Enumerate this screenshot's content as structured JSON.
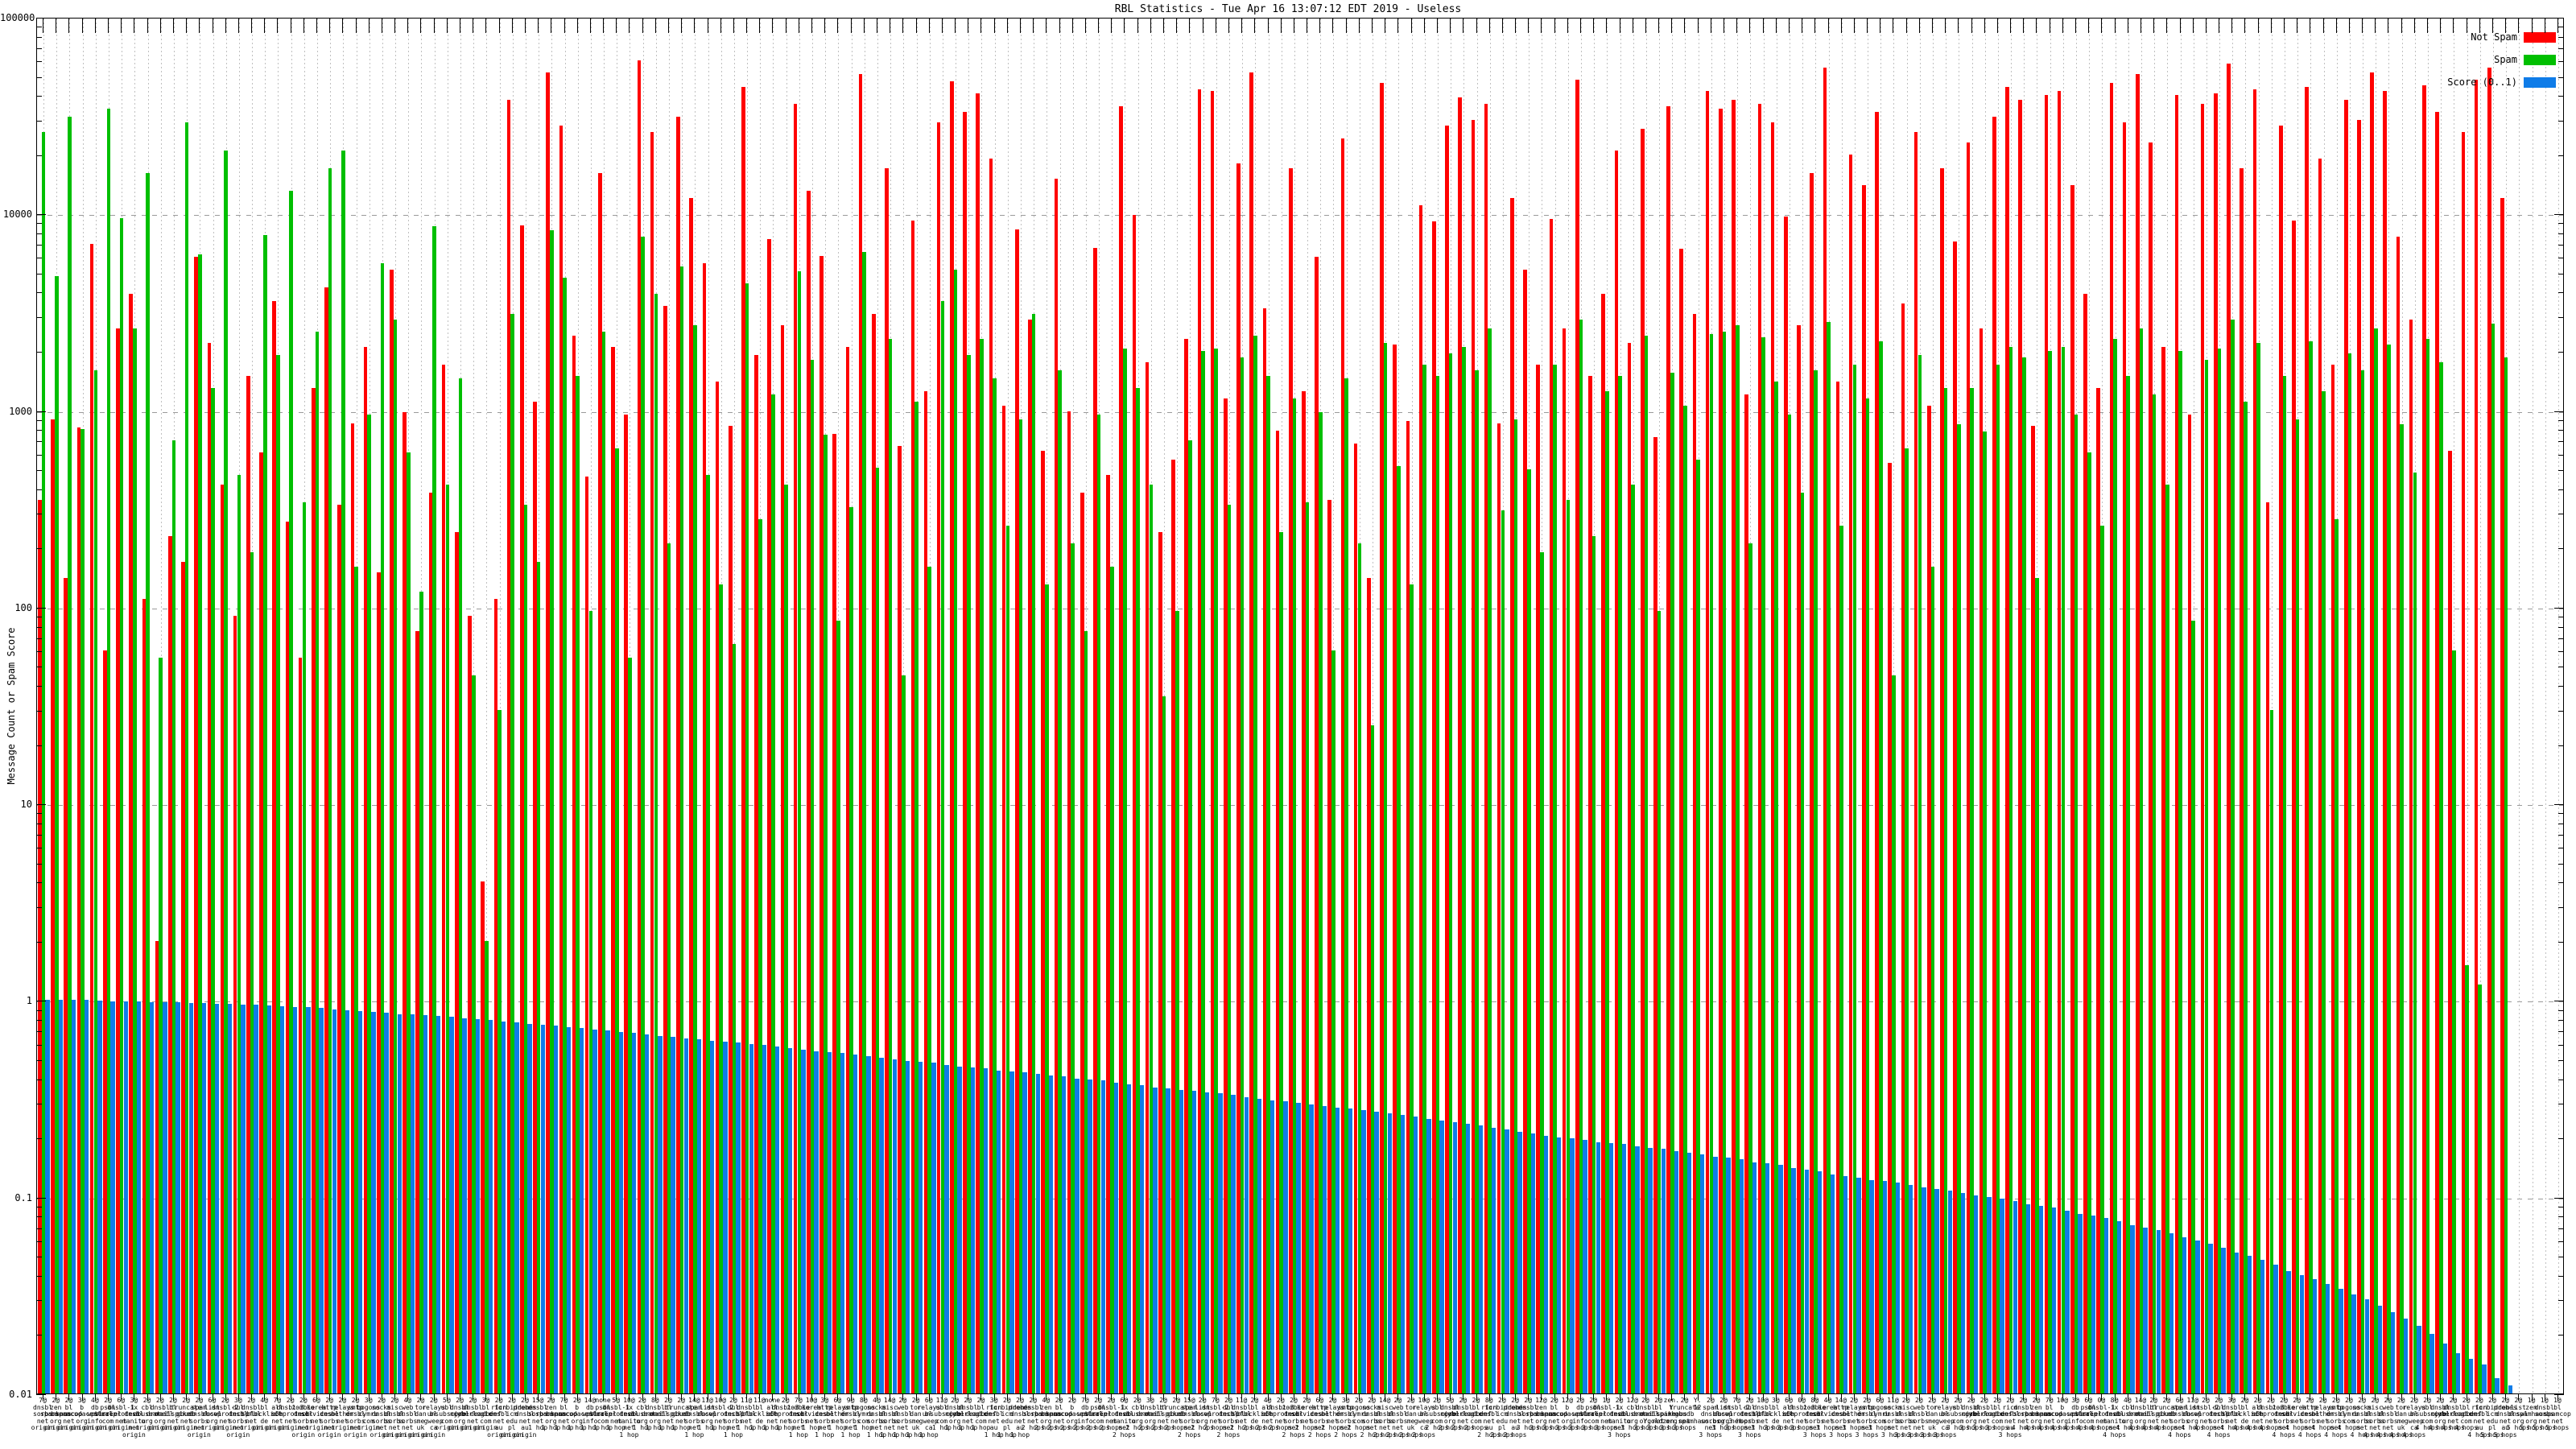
{
  "title": "RBL Statistics - Tue Apr 16 13:07:12 EDT 2019 - Useless",
  "y_axis": {
    "label": "Message Count or Spam Score",
    "tick_labels": [
      "100000",
      "10000",
      "1000",
      "100",
      "10",
      "1",
      "0.1",
      "0.01"
    ],
    "min": 0.01,
    "max": 100000
  },
  "legend": [
    {
      "label": "Not Spam",
      "color": "#ff0000"
    },
    {
      "label": "Spam",
      "color": "#00bf00"
    },
    {
      "label": "Score (0..1)",
      "color": "#0f7ce8"
    }
  ],
  "chart_data": {
    "type": "bar",
    "title": "RBL Statistics - Tue Apr 16 13:07:12 EDT 2019 - Useless",
    "xlabel": "",
    "ylabel": "Message Count or Spam Score",
    "yscale": "log",
    "ylim": [
      0.01,
      100000
    ],
    "grid": true,
    "legend_position": "top-right",
    "categories": [
      "7@ dnsbl.sorbs.net origin",
      "2@ zen.spamhaus.org origin",
      "2@ bl.spamcop.net origin",
      "3@ b.barracudacentral.org origin",
      "4@ db.wpbl.info origin",
      "2@ psbl.surriel.com origin",
      "6@ dnsbl-1.uceprotect.net origin",
      "3@ ix.dnsbl.manitu.net origin",
      "2@ cbl.abuseat.org origin",
      "2@ dnsbl.dronebl.org origin",
      "2@ bl.mailspike.net origin",
      "2@ truncate.gbudb.net origin",
      "2@ spam.dnsbl.sorbs.net origin",
      "6@ list.dnswl.org origin",
      "2@ dnsbl-2.uceprotect.net origin",
      "3@ dul.dnsbl.sorbs.net origin",
      "2@ dnsbl.spfbl.net origin",
      "4@ bl.blocklist.de origin",
      "7@ all.s5h.net origin",
      "2@ dnsbl-3.uceprotect.net origin",
      "2@ zombie.dnsbl.sorbs.net origin",
      "6@ korea.services.net origin",
      "2@ http.dnsbl.sorbs.net origin",
      "2@ relays.nether.net origin",
      "2@ smtp.dnsbl.sorbs.net origin",
      "3@ bogons.cymru.com origin",
      "2@ socks.dnsbl.sorbs.net origin",
      "2@ misc.dnsbl.sorbs.net origin",
      "4@ web.dnsbl.sorbs.net origin",
      "2@ tor.dan.me.uk origin",
      "2@ relays.bl.gweep.ca origin",
      "5@ ubl.unsubscore.com origin",
      "2@ dnsbl.njabl.org origin",
      "2@ dnsbl.cyberlogic.net origin",
      "3@ bl.deadbeef.com origin",
      "2@ ricn.dnsbl.net.au origin",
      "2@ forbidden.icm.edu.pl origin",
      "2@ probes.dnsbl.net.au origin",
      "15@ dnsbl.sorbs.net 1 hop",
      "2@ zen.spamhaus.org 1 hop",
      "7@ bl.spamcop.net 1 hop",
      "2@ b.barracudacentral.org 1 hop",
      "14@ db.wpbl.info 1 hop",
      "none psbl.surriel.com 1 hop",
      "5@ dnsbl-1.uceprotect.net 1 hop",
      "10@ ix.dnsbl.manitu.net 1 hop",
      "2@ cbl.abuseat.org 1 hop",
      "8@ dnsbl.dronebl.org 1 hop",
      "2@ bl.mailspike.net 1 hop",
      "2@ truncate.gbudb.net 1 hop",
      "14@ spam.dnsbl.sorbs.net 1 hop",
      "11@ list.dnswl.org 1 hop",
      "10@ dnsbl-2.uceprotect.net 1 hop",
      "2@ dul.dnsbl.sorbs.net 1 hop",
      "11@ dnsbl.spfbl.net 1 hop",
      "11@ bl.blocklist.de 1 hop",
      "none all.s5h.net 1 hop",
      "2@ dnsbl-3.uceprotect.net 1 hop",
      "7@ zombie.dnsbl.sorbs.net 1 hop",
      "10@ korea.services.net 1 hop",
      "3@ http.dnsbl.sorbs.net 1 hop",
      "6@ relays.nether.net 1 hop",
      "9@ smtp.dnsbl.sorbs.net 1 hop",
      "8@ bogons.cymru.com 1 hop",
      "4@ socks.dnsbl.sorbs.net 1 hop",
      "14@ misc.dnsbl.sorbs.net 1 hop",
      "2@ web.dnsbl.sorbs.net 1 hop",
      "2@ tor.dan.me.uk 1 hop",
      "6@ relays.bl.gweep.ca 1 hop",
      "11@ ubl.unsubscore.com 1 hop",
      "2@ dnsbl.njabl.org 1 hop",
      "2@ dnsbl.cyberlogic.net 1 hop",
      "2@ bl.deadbeef.com 1 hop",
      "3@ ricn.dnsbl.net.au 1 hop",
      "2@ forbidden.icm.edu.pl 1 hop",
      "2@ probes.dnsbl.net.au 1 hop",
      "2@ dnsbl.sorbs.net 2 hops",
      "4@ zen.spamhaus.org 2 hops",
      "2@ bl.spamcop.net 2 hops",
      "2@ b.barracudacentral.org 2 hops",
      "7@ db.wpbl.info 2 hops",
      "2@ psbl.surriel.com 2 hops",
      "2@ dnsbl-1.uceprotect.net 2 hops",
      "6@ ix.dnsbl.manitu.net 2 hops",
      "2@ cbl.abuseat.org 2 hops",
      "3@ dnsbl.dronebl.org 2 hops",
      "2@ bl.mailspike.net 2 hops",
      "2@ truncate.gbudb.net 2 hops",
      "15@ spam.dnsbl.sorbs.net 2 hops",
      "2@ list.dnswl.org 2 hops",
      "7@ dnsbl-2.uceprotect.net 2 hops",
      "2@ dul.dnsbl.sorbs.net 2 hops",
      "11@ dnsbl.spfbl.net 2 hops",
      "2@ bl.blocklist.de 2 hops",
      "4@ all.s5h.net 2 hops",
      "2@ dnsbl-3.uceprotect.net 2 hops",
      "2@ zombie.dnsbl.sorbs.net 2 hops",
      "2@ korea.services.net 2 hops",
      "6@ http.dnsbl.sorbs.net 2 hops",
      "2@ relays.nether.net 2 hops",
      "3@ smtp.dnsbl.sorbs.net 2 hops",
      "2@ bogons.cymru.com 2 hops",
      "2@ socks.dnsbl.sorbs.net 2 hops",
      "14@ misc.dnsbl.sorbs.net 2 hops",
      "2@ web.dnsbl.sorbs.net 2 hops",
      "2@ tor.dan.me.uk 2 hops",
      "10@ relays.bl.gweep.ca 2 hops",
      "2@ ubl.unsubscore.com 2 hops",
      "5@ dnsbl.njabl.org 2 hops",
      "2@ dnsbl.cyberlogic.net 2 hops",
      "2@ bl.deadbeef.com 2 hops",
      "8@ ricn.dnsbl.net.au 2 hops",
      "2@ forbidden.icm.edu.pl 2 hops",
      "2@ probes.dnsbl.net.au 2 hops",
      "2@ dnsbl.sorbs.net 3 hops",
      "12@ zen.spamhaus.org 3 hops",
      "2@ bl.spamcop.net 3 hops",
      "12@ b.barracudacentral.org 3 hops",
      "2@ db.wpbl.info 3 hops",
      "2@ psbl.surriel.com 3 hops",
      "1@ dnsbl-1.uceprotect.net 3 hops",
      "2@ ix.dnsbl.manitu.net 3 hops",
      "12@ cbl.abuseat.org 3 hops",
      "2@ dnsbl.dronebl.org 3 hops",
      "2@ bl.mailspike.net 3 hops",
      "zen. Y.spamhaus.org 3 hops",
      "2@ truncate.gbudb.net 3 hops",
      "Y. 12. Y.oldzen.spamhaus.org 3 hops",
      "2@ spam.dnsbl.sorbs.net 3 hops",
      "2@ list.dnswl.org 3 hops",
      "7@ dnsbl-2.uceprotect.net 3 hops",
      "2@ dul.dnsbl.sorbs.net 3 hops",
      "10@ dnsbl.spfbl.net 3 hops",
      "3@ bl.blocklist.de 3 hops",
      "6@ all.s5h.net 3 hops",
      "0@ dnsbl-3.uceprotect.net 3 hops",
      "8@ zombie.dnsbl.sorbs.net 3 hops",
      "4@ korea.services.net 3 hops",
      "14@ http.dnsbl.sorbs.net 3 hops",
      "2@ relays.nether.net 3 hops",
      "2@ smtp.dnsbl.sorbs.net 3 hops",
      "6@ bogons.cymru.com 3 hops",
      "11@ socks.dnsbl.sorbs.net 3 hops",
      "2@ misc.dnsbl.sorbs.net 3 hops",
      "2@ web.dnsbl.sorbs.net 3 hops",
      "2@ tor.dan.me.uk 3 hops",
      "2@ relays.bl.gweep.ca 3 hops",
      "2@ ubl.unsubscore.com 3 hops",
      "2@ dnsbl.njabl.org 3 hops",
      "2@ dnsbl.cyberlogic.net 3 hops",
      "2@ bl.deadbeef.com 3 hops",
      "2@ ricn.dnsbl.net.au 3 hops",
      "2@ dnsbl.sorbs.net 4 hops",
      "2@ zen.spamhaus.org 4 hops",
      "7@ bl.spamcop.net 4 hops",
      "10@ b.barracudacentral.org 4 hops",
      "3@ db.wpbl.info 4 hops",
      "6@ psbl.surriel.com 4 hops",
      "0@ dnsbl-1.uceprotect.net 4 hops",
      "8@ ix.dnsbl.manitu.net 4 hops",
      "4@ cbl.abuseat.org 4 hops",
      "14@ dnsbl.dronebl.org 4 hops",
      "2@ bl.mailspike.net 4 hops",
      "2@ truncate.gbudb.net 4 hops",
      "6@ spam.dnsbl.sorbs.net 4 hops",
      "11@ list.dnswl.org 4 hops",
      "2@ dnsbl-2.uceprotect.net 4 hops",
      "2@ dul.dnsbl.sorbs.net 4 hops",
      "3@ dnsbl.spfbl.net 4 hops",
      "2@ bl.blocklist.de 4 hops",
      "2@ all.s5h.net 4 hops",
      "2@ dnsbl-3.uceprotect.net 4 hops",
      "2@ zombie.dnsbl.sorbs.net 4 hops",
      "2@ korea.services.net 4 hops",
      "2@ http.dnsbl.sorbs.net 4 hops",
      "2@ relays.nether.net 4 hops",
      "2@ smtp.dnsbl.sorbs.net 4 hops",
      "2@ bogons.cymru.com 4 hops",
      "2@ socks.dnsbl.sorbs.net 4 hops",
      "2@ misc.dnsbl.sorbs.net 4 hops",
      "2@ web.dnsbl.sorbs.net 4 hops",
      "2@ tor.dan.me.uk 4 hops",
      "2@ relays.bl.gweep.ca 4 hops",
      "2@ ubl.unsubscore.com 4 hops",
      "2@ dnsbl.njabl.org 4 hops",
      "2@ dnsbl.cyberlogic.net 4 hops",
      "2@ bl.deadbeef.com 4 hops",
      "2@ ricn.dnsbl.net.au 4 hops",
      "2@ forbidden.icm.edu.pl 5 hops",
      "2@ probes.dnsbl.net.au 5 hops",
      "2@ list.dnswl.org 5 hops",
      "1@ zen.spamhaus.org 5 hops",
      "1@ dnsbl.sorbs.net 5 hops",
      "1@ bl.spamcop.net 5 hops"
    ],
    "series": [
      {
        "name": "Not Spam",
        "color": "#ff0000",
        "values": [
          350,
          900,
          140,
          820,
          7000,
          60,
          2600,
          3900,
          110,
          2,
          230,
          170,
          6000,
          2200,
          420,
          90,
          1500,
          610,
          3600,
          270,
          55,
          1300,
          4200,
          330,
          860,
          2100,
          150,
          5200,
          980,
          75,
          380,
          1700,
          240,
          90,
          4,
          110,
          38000,
          8700,
          1100,
          52000,
          28000,
          2400,
          460,
          16000,
          2100,
          950,
          60000,
          26000,
          3400,
          31000,
          12000,
          5600,
          1400,
          830,
          44000,
          1900,
          7400,
          2700,
          36000,
          13000,
          6100,
          760,
          2100,
          51000,
          3100,
          17000,
          660,
          9200,
          1250,
          29000,
          47000,
          33000,
          41000,
          19000,
          1050,
          8300,
          2900,
          620,
          15000,
          990,
          380,
          6700,
          470,
          35000,
          9800,
          1750,
          240,
          560,
          2300,
          43000,
          42000,
          1150,
          18000,
          52000,
          3300,
          790,
          17000,
          1250,
          6000,
          350,
          24000,
          680,
          140,
          46000,
          2150,
          880,
          11000,
          9100,
          28000,
          39000,
          30000,
          36000,
          860,
          12000,
          5200,
          1700,
          9400,
          2600,
          48000,
          1500,
          3900,
          21000,
          2200,
          27000,
          730,
          35000,
          6600,
          3100,
          42000,
          34000,
          38000,
          1200,
          36000,
          29000,
          9700,
          2700,
          16000,
          55000,
          1400,
          20000,
          14000,
          33000,
          540,
          3500,
          26000,
          1050,
          17000,
          7200,
          23000,
          2600,
          31000,
          44000,
          38000,
          830,
          40000,
          42000,
          14000,
          3900,
          1300,
          46000,
          29000,
          51000,
          23000,
          2100,
          40000,
          950,
          36000,
          41000,
          58000,
          17000,
          43000,
          340,
          28000,
          9200,
          44000,
          19000,
          1700,
          38000,
          30000,
          52000,
          42000,
          7600,
          2900,
          45000,
          33000,
          620,
          26000,
          48000,
          55000,
          12000
        ]
      },
      {
        "name": "Spam",
        "color": "#00bf00",
        "values": [
          26000,
          4800,
          31000,
          800,
          1600,
          34000,
          9500,
          2600,
          16000,
          55,
          700,
          29000,
          6200,
          1300,
          21000,
          470,
          190,
          7800,
          1900,
          13000,
          340,
          2500,
          17000,
          21000,
          160,
          950,
          5600,
          2900,
          610,
          120,
          8600,
          420,
          1450,
          45,
          2,
          30,
          3100,
          330,
          170,
          8200,
          4700,
          1500,
          95,
          2500,
          640,
          55,
          7600,
          3900,
          210,
          5400,
          2700,
          470,
          130,
          65,
          4400,
          280,
          1200,
          420,
          5100,
          1800,
          750,
          85,
          320,
          6400,
          510,
          2300,
          45,
          1100,
          160,
          3600,
          5200,
          1900,
          2300,
          1450,
          260,
          900,
          3100,
          130,
          1600,
          210,
          75,
          950,
          160,
          2050,
          1300,
          420,
          35,
          95,
          700,
          2000,
          2050,
          330,
          1850,
          2400,
          1500,
          240,
          1150,
          340,
          980,
          60,
          1450,
          210,
          25,
          2200,
          520,
          130,
          1700,
          1500,
          1950,
          2100,
          1600,
          2600,
          310,
          900,
          500,
          190,
          1700,
          350,
          2900,
          230,
          1250,
          1500,
          420,
          2400,
          95,
          1550,
          1050,
          560,
          2450,
          2500,
          2700,
          210,
          2350,
          1400,
          950,
          380,
          1600,
          2800,
          260,
          1700,
          1150,
          2250,
          45,
          640,
          1900,
          160,
          1300,
          850,
          1300,
          780,
          1700,
          2100,
          1850,
          140,
          2000,
          2100,
          950,
          610,
          260,
          2300,
          1500,
          2600,
          1200,
          420,
          2000,
          85,
          1800,
          2050,
          2900,
          1100,
          2200,
          30,
          1500,
          900,
          2250,
          1250,
          280,
          1950,
          1600,
          2600,
          2150,
          850,
          480,
          2300,
          1750,
          60,
          1.5,
          1.2,
          2750,
          1850
        ]
      },
      {
        "name": "Score (0..1)",
        "color": "#0f7ce8",
        "values": [
          1.0,
          1.0,
          1.0,
          1.0,
          0.995,
          0.99,
          0.99,
          0.985,
          0.98,
          0.98,
          0.975,
          0.97,
          0.965,
          0.96,
          0.955,
          0.95,
          0.945,
          0.94,
          0.93,
          0.925,
          0.92,
          0.91,
          0.9,
          0.89,
          0.88,
          0.87,
          0.86,
          0.85,
          0.845,
          0.84,
          0.83,
          0.82,
          0.81,
          0.8,
          0.79,
          0.78,
          0.77,
          0.76,
          0.75,
          0.74,
          0.73,
          0.72,
          0.71,
          0.7,
          0.69,
          0.68,
          0.67,
          0.66,
          0.65,
          0.64,
          0.63,
          0.62,
          0.615,
          0.61,
          0.6,
          0.59,
          0.58,
          0.57,
          0.56,
          0.55,
          0.545,
          0.54,
          0.53,
          0.52,
          0.51,
          0.5,
          0.49,
          0.485,
          0.48,
          0.47,
          0.46,
          0.455,
          0.45,
          0.44,
          0.435,
          0.43,
          0.42,
          0.415,
          0.41,
          0.4,
          0.395,
          0.39,
          0.38,
          0.375,
          0.37,
          0.36,
          0.355,
          0.35,
          0.345,
          0.34,
          0.335,
          0.33,
          0.32,
          0.315,
          0.31,
          0.305,
          0.3,
          0.295,
          0.29,
          0.285,
          0.28,
          0.275,
          0.27,
          0.265,
          0.26,
          0.255,
          0.25,
          0.245,
          0.24,
          0.235,
          0.23,
          0.225,
          0.22,
          0.215,
          0.21,
          0.205,
          0.2,
          0.198,
          0.195,
          0.19,
          0.188,
          0.185,
          0.18,
          0.178,
          0.175,
          0.17,
          0.168,
          0.165,
          0.16,
          0.158,
          0.155,
          0.15,
          0.148,
          0.145,
          0.14,
          0.138,
          0.135,
          0.13,
          0.128,
          0.125,
          0.122,
          0.12,
          0.118,
          0.115,
          0.112,
          0.11,
          0.108,
          0.105,
          0.102,
          0.1,
          0.098,
          0.095,
          0.092,
          0.09,
          0.088,
          0.085,
          0.082,
          0.08,
          0.078,
          0.075,
          0.072,
          0.07,
          0.068,
          0.065,
          0.062,
          0.06,
          0.058,
          0.055,
          0.052,
          0.05,
          0.048,
          0.045,
          0.042,
          0.04,
          0.038,
          0.036,
          0.034,
          0.032,
          0.03,
          0.028,
          0.026,
          0.024,
          0.022,
          0.02,
          0.018,
          0.016,
          0.015,
          0.014,
          0.012,
          0.011
        ]
      }
    ]
  }
}
